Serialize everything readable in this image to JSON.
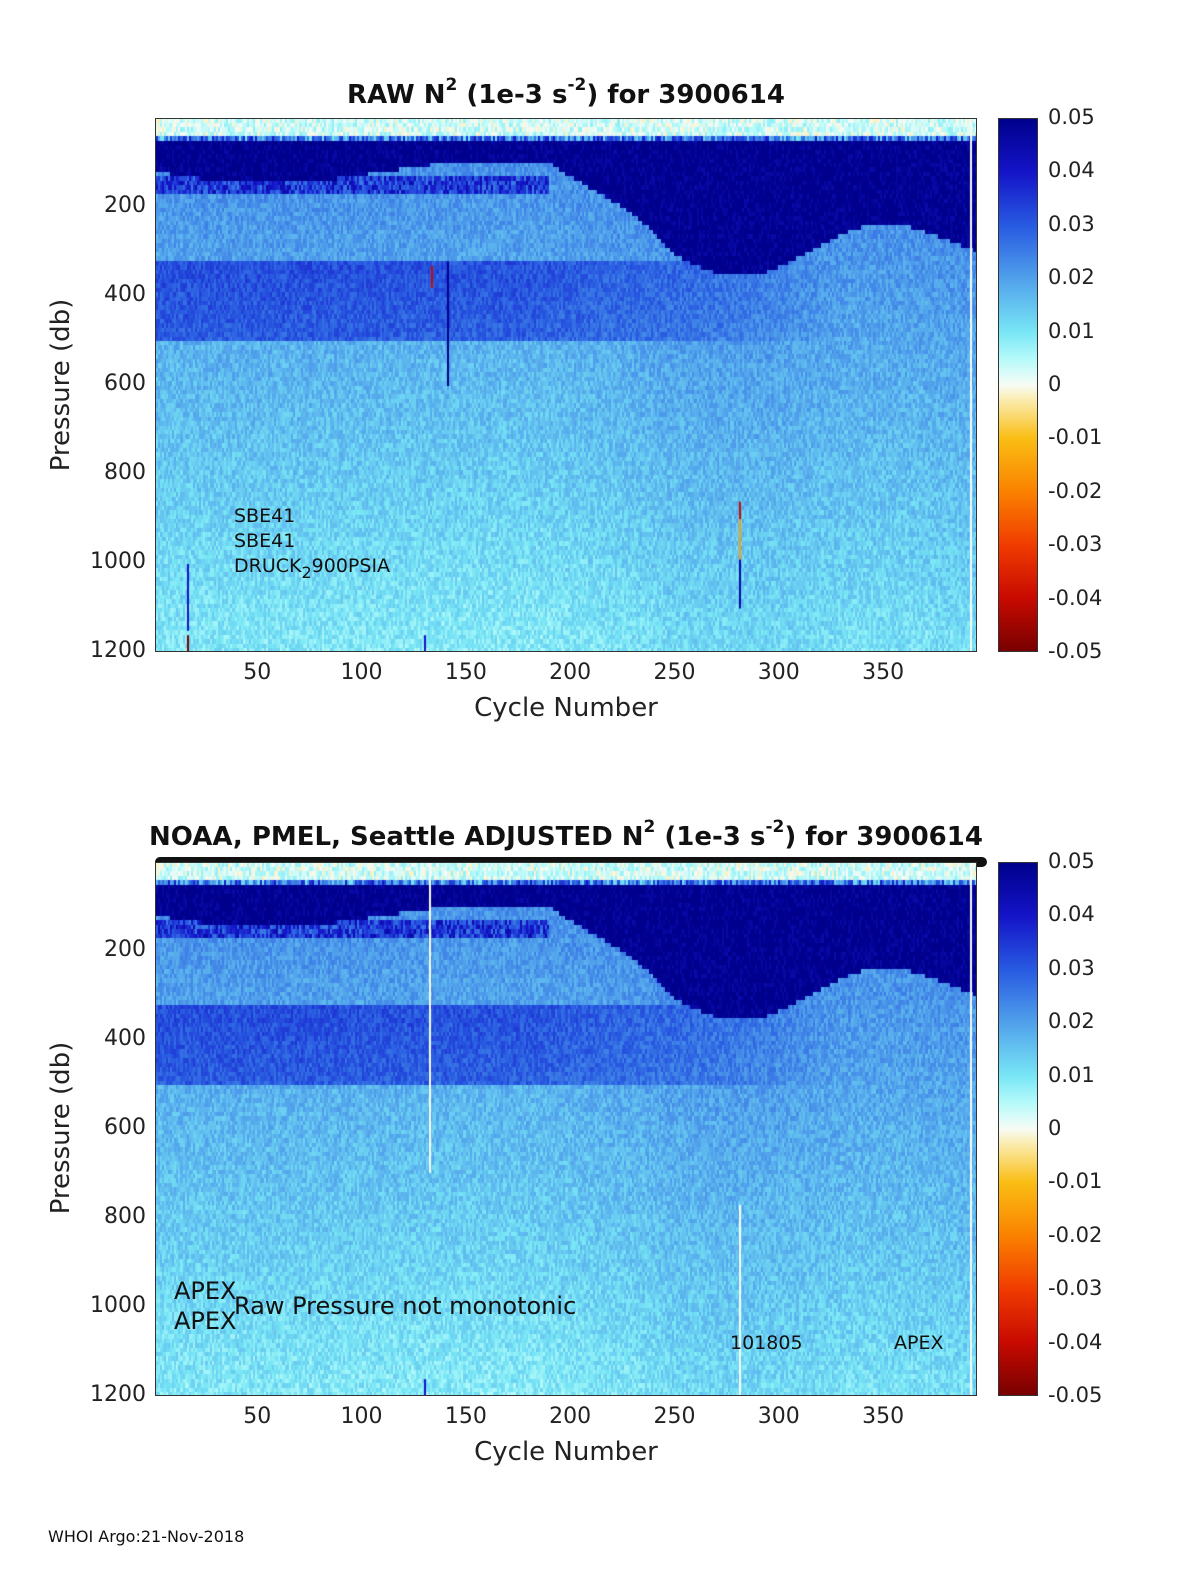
{
  "chart_data": [
    {
      "type": "heatmap",
      "title": {
        "prefix": "RAW N",
        "sup1": "2",
        "mid": " (1e-3 s",
        "sup2": "-2",
        "suffix": ") for 3900614"
      },
      "xlabel": "Cycle Number",
      "ylabel": "Pressure (db)",
      "xlim": [
        1,
        395
      ],
      "ylim": [
        1200,
        0
      ],
      "y_reversed": true,
      "xticks": [
        50,
        100,
        150,
        200,
        250,
        300,
        350
      ],
      "yticks": [
        200,
        400,
        600,
        800,
        1000,
        1200
      ],
      "colorbar": {
        "colormap": "blue-cyan-white-yellow-red",
        "range": [
          -0.05,
          0.05
        ],
        "ticks": [
          "0.05",
          "0.04",
          "0.03",
          "0.02",
          "0.01",
          "0",
          "-0.01",
          "-0.02",
          "-0.03",
          "-0.04",
          "-0.05"
        ]
      },
      "annotations": {
        "line1": "SBE41",
        "line2": "SBE41",
        "line3_main": "DRUCK",
        "line3_sub": "2",
        "line3_tail": "900PSIA"
      }
    },
    {
      "type": "heatmap",
      "title": {
        "prefix": "NOAA, PMEL, Seattle  ADJUSTED N",
        "sup1": "2",
        "mid": " (1e-3 s",
        "sup2": "-2",
        "suffix": ") for 3900614"
      },
      "xlabel": "Cycle Number",
      "ylabel": "Pressure (db)",
      "xlim": [
        1,
        395
      ],
      "ylim": [
        1200,
        0
      ],
      "y_reversed": true,
      "xticks": [
        50,
        100,
        150,
        200,
        250,
        300,
        350
      ],
      "yticks": [
        200,
        400,
        600,
        800,
        1000,
        1200
      ],
      "colorbar": {
        "colormap": "blue-cyan-white-yellow-red",
        "range": [
          -0.05,
          0.05
        ],
        "ticks": [
          "0.05",
          "0.04",
          "0.03",
          "0.02",
          "0.01",
          "0",
          "-0.01",
          "-0.02",
          "-0.03",
          "-0.04",
          "-0.05"
        ]
      },
      "annotations": {
        "apex1": "APEX",
        "apex2": "APEX",
        "warning": "Raw Pressure not monotonic",
        "serial": "101805",
        "model": "APEX"
      }
    }
  ],
  "footer": "WHOI Argo:21-Nov-2018",
  "colors": {
    "deep_blue": "#00008c",
    "cyan": "#9ef5f5",
    "white": "#f7fbf5",
    "red": "#b00000"
  }
}
